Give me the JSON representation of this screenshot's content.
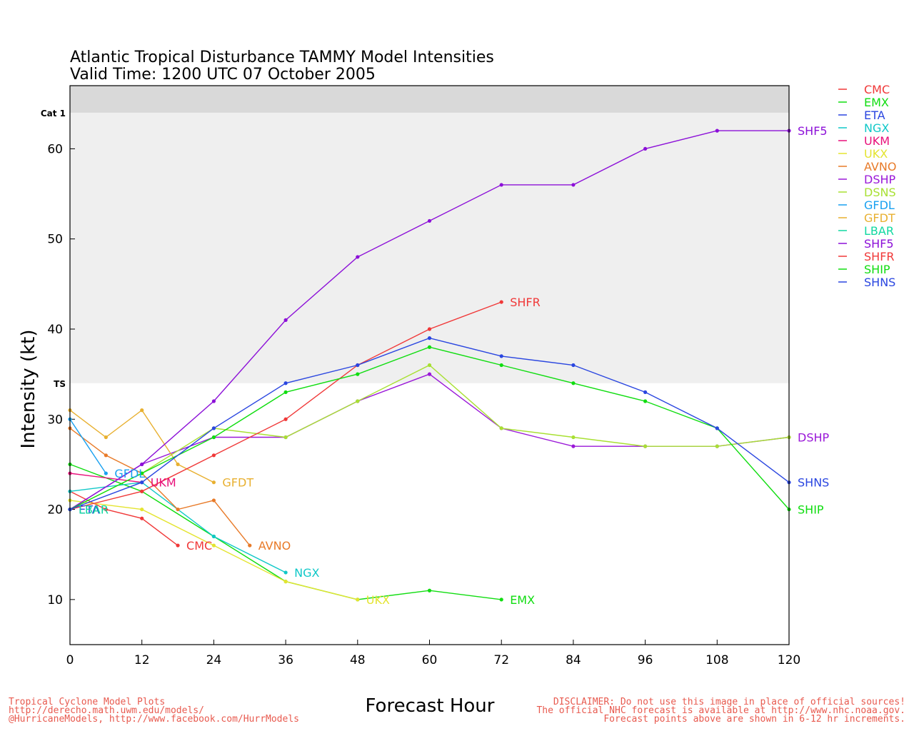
{
  "chart_data": {
    "type": "line",
    "title": "Atlantic Tropical Disturbance TAMMY Model Intensities",
    "subtitle": "Valid Time: 1200 UTC 07 October 2005",
    "xlabel": "Forecast Hour",
    "ylabel": "Intensity (kt)",
    "xlim": [
      0,
      120
    ],
    "ylim": [
      5,
      67
    ],
    "xticks": [
      0,
      12,
      24,
      36,
      48,
      60,
      72,
      84,
      96,
      108,
      120
    ],
    "yticks": [
      10,
      20,
      30,
      40,
      50,
      60
    ],
    "bands": [
      {
        "label": "TS",
        "from": 34,
        "to": 64,
        "color": "#efefef"
      },
      {
        "label": "Cat 1",
        "from": 64,
        "to": 67,
        "color": "#d9d9d9"
      }
    ],
    "legend_position": "right",
    "series": [
      {
        "name": "CMC",
        "color": "#f03838",
        "end_label": "CMC",
        "x": [
          0,
          6,
          12,
          18
        ],
        "y": [
          22,
          20,
          19,
          16
        ]
      },
      {
        "name": "EMX",
        "color": "#10dd10",
        "end_label": "EMX",
        "x": [
          0,
          12,
          24,
          36,
          48,
          60,
          72
        ],
        "y": [
          25,
          22,
          17,
          12,
          10,
          11,
          10
        ]
      },
      {
        "name": "ETA",
        "color": "#2a46e0",
        "end_label": "ETA",
        "x": [
          0
        ],
        "y": [
          20
        ]
      },
      {
        "name": "NGX",
        "color": "#10c8c8",
        "end_label": "NGX",
        "x": [
          0,
          12,
          24,
          36
        ],
        "y": [
          22,
          23,
          17,
          13
        ]
      },
      {
        "name": "UKM",
        "color": "#e8107a",
        "end_label": "UKM",
        "x": [
          0,
          12
        ],
        "y": [
          24,
          23
        ]
      },
      {
        "name": "UKX",
        "color": "#e4e430",
        "end_label": "UKX",
        "x": [
          0,
          12,
          24,
          36,
          48
        ],
        "y": [
          21,
          20,
          16,
          12,
          10
        ]
      },
      {
        "name": "AVNO",
        "color": "#e87a28",
        "end_label": "AVNO",
        "x": [
          0,
          6,
          12,
          18,
          24,
          30
        ],
        "y": [
          29,
          26,
          24,
          20,
          21,
          16
        ]
      },
      {
        "name": "DSHP",
        "color": "#9a18d8",
        "end_label": "DSHP",
        "x": [
          0,
          12,
          24,
          36,
          48,
          60,
          72,
          84,
          96,
          108,
          120
        ],
        "y": [
          20,
          25,
          28,
          28,
          32,
          35,
          29,
          27,
          27,
          27,
          28
        ]
      },
      {
        "name": "DSNS",
        "color": "#a8e032",
        "end_label": "",
        "x": [
          0,
          12,
          24,
          36,
          48,
          60,
          72,
          84,
          96,
          108,
          120
        ],
        "y": [
          20,
          24,
          29,
          28,
          32,
          36,
          29,
          28,
          27,
          27,
          28
        ]
      },
      {
        "name": "GFDL",
        "color": "#18a0f0",
        "end_label": "GFDL",
        "x": [
          0,
          6
        ],
        "y": [
          30,
          24
        ]
      },
      {
        "name": "GFDT",
        "color": "#e8b030",
        "end_label": "GFDT",
        "x": [
          0,
          6,
          12,
          18,
          24
        ],
        "y": [
          31,
          28,
          31,
          25,
          23
        ]
      },
      {
        "name": "LBAR",
        "color": "#10d8a0",
        "end_label": "LBAR",
        "x": [
          0
        ],
        "y": [
          20
        ]
      },
      {
        "name": "SHF5",
        "color": "#8c10d8",
        "end_label": "SHF5",
        "x": [
          0,
          12,
          24,
          36,
          48,
          60,
          72,
          84,
          96,
          108,
          120
        ],
        "y": [
          20,
          25,
          32,
          41,
          48,
          52,
          56,
          56,
          60,
          62,
          62
        ]
      },
      {
        "name": "SHFR",
        "color": "#f03838",
        "end_label": "SHFR",
        "x": [
          0,
          12,
          24,
          36,
          48,
          60,
          72
        ],
        "y": [
          20,
          22,
          26,
          30,
          36,
          40,
          43
        ]
      },
      {
        "name": "SHIP",
        "color": "#10dd10",
        "end_label": "SHIP",
        "x": [
          0,
          12,
          24,
          36,
          48,
          60,
          72,
          84,
          96,
          108,
          120
        ],
        "y": [
          20,
          24,
          28,
          33,
          35,
          38,
          36,
          34,
          32,
          29,
          20
        ]
      },
      {
        "name": "SHNS",
        "color": "#2a46e0",
        "end_label": "SHNS",
        "x": [
          0,
          12,
          24,
          36,
          48,
          60,
          72,
          84,
          96,
          108,
          120
        ],
        "y": [
          20,
          23,
          29,
          34,
          36,
          39,
          37,
          36,
          33,
          29,
          23
        ]
      }
    ]
  },
  "footer": {
    "left": [
      "Tropical Cyclone Model Plots",
      "http://derecho.math.uwm.edu/models/",
      "@HurricaneModels, http://www.facebook.com/HurrModels"
    ],
    "right": [
      "DISCLAIMER: Do not use this image in place of official sources!",
      "The official NHC forecast is available at http://www.nhc.noaa.gov.",
      "Forecast points above are shown in 6-12 hr increments."
    ]
  }
}
